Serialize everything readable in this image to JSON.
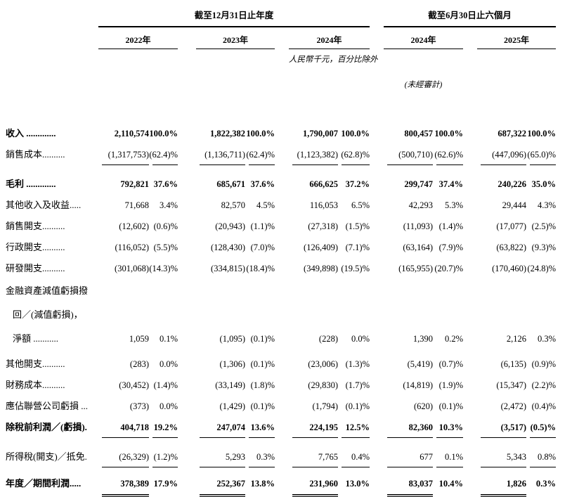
{
  "table": {
    "unit_note": "人民幣千元，百分比除外",
    "audit_note": "(未經審計)",
    "col_groups": [
      {
        "title": "截至12月31日止年度",
        "years": [
          "2022年",
          "2023年",
          "2024年"
        ]
      },
      {
        "title": "截至6月30日止六個月",
        "years": [
          "2024年",
          "2025年"
        ]
      }
    ],
    "rows": [
      {
        "label": "收入 .............",
        "emphasis": true,
        "cells": [
          "2,110,574",
          "100.0%",
          "1,822,382",
          "100.0%",
          "1,790,007",
          "100.0%",
          "800,457",
          "100.0%",
          "687,322",
          "100.0%"
        ]
      },
      {
        "label": "銷售成本..........",
        "rule_below": "single",
        "gap_after": 12,
        "cells": [
          "(1,317,753)",
          "(62.4)%",
          "(1,136,711)",
          "(62.4)%",
          "(1,123,382)",
          "(62.8)%",
          "(500,710)",
          "(62.6)%",
          "(447,096)",
          "(65.0)%"
        ]
      },
      {
        "label": "毛利 .............",
        "emphasis": true,
        "cells": [
          "792,821",
          "37.6%",
          "685,671",
          "37.6%",
          "666,625",
          "37.2%",
          "299,747",
          "37.4%",
          "240,226",
          "35.0%"
        ]
      },
      {
        "label": "其他收入及收益.....",
        "cells": [
          "71,668",
          "3.4%",
          "82,570",
          "4.5%",
          "116,053",
          "6.5%",
          "42,293",
          "5.3%",
          "29,444",
          "4.3%"
        ]
      },
      {
        "label": "銷售開支..........",
        "cells": [
          "(12,602)",
          "(0.6)%",
          "(20,943)",
          "(1.1)%",
          "(27,318)",
          "(1.5)%",
          "(11,093)",
          "(1.4)%",
          "(17,077)",
          "(2.5)%"
        ]
      },
      {
        "label": "行政開支..........",
        "cells": [
          "(116,052)",
          "(5.5)%",
          "(128,430)",
          "(7.0)%",
          "(126,409)",
          "(7.1)%",
          "(63,164)",
          "(7.9)%",
          "(63,822)",
          "(9.3)%"
        ]
      },
      {
        "label": "研發開支..........",
        "cells": [
          "(301,068)",
          "(14.3)%",
          "(334,815)",
          "(18.4)%",
          "(349,898)",
          "(19.5)%",
          "(165,955)",
          "(20.7)%",
          "(170,460)",
          "(24.8)%"
        ]
      },
      {
        "label": "金融資產減值虧損撥",
        "tall": true,
        "cells": null
      },
      {
        "label": "回／(減值虧損)，",
        "tall": true,
        "indent": true,
        "cells": null
      },
      {
        "label": "淨額 ...........",
        "tall": true,
        "indent": true,
        "gap_after": 4,
        "cells": [
          "1,059",
          "0.1%",
          "(1,095)",
          "(0.1)%",
          "(228)",
          "0.0%",
          "1,390",
          "0.2%",
          "2,126",
          "0.3%"
        ]
      },
      {
        "label": "其他開支..........",
        "cells": [
          "(283)",
          "0.0%",
          "(1,306)",
          "(0.1)%",
          "(23,006)",
          "(1.3)%",
          "(5,419)",
          "(0.7)%",
          "(6,135)",
          "(0.9)%"
        ]
      },
      {
        "label": "財務成本..........",
        "cells": [
          "(30,452)",
          "(1.4)%",
          "(33,149)",
          "(1.8)%",
          "(29,830)",
          "(1.7)%",
          "(14,819)",
          "(1.9)%",
          "(15,347)",
          "(2.2)%"
        ]
      },
      {
        "label": "應佔聯營公司虧損 ...",
        "cells": [
          "(373)",
          "0.0%",
          "(1,429)",
          "(0.1)%",
          "(1,794)",
          "(0.1)%",
          "(620)",
          "(0.1)%",
          "(2,472)",
          "(0.4)%"
        ]
      },
      {
        "label": "除稅前利潤／(虧損).",
        "emphasis": true,
        "rule_below": "single",
        "gap_after": 12,
        "cells": [
          "404,718",
          "19.2%",
          "247,074",
          "13.6%",
          "224,195",
          "12.5%",
          "82,360",
          "10.3%",
          "(3,517)",
          "(0.5)%"
        ]
      },
      {
        "label": "所得稅(開支)／抵免.",
        "rule_below": "single",
        "gap_after": 8,
        "cells": [
          "(26,329)",
          "(1.2)%",
          "5,293",
          "0.3%",
          "7,765",
          "0.4%",
          "677",
          "0.1%",
          "5,343",
          "0.8%"
        ]
      },
      {
        "label": "年度／期間利潤.....",
        "emphasis": true,
        "rule_below": "double-values",
        "cells": [
          "378,389",
          "17.9%",
          "252,367",
          "13.8%",
          "231,960",
          "13.0%",
          "83,037",
          "10.4%",
          "1,826",
          "0.3%"
        ]
      }
    ]
  }
}
